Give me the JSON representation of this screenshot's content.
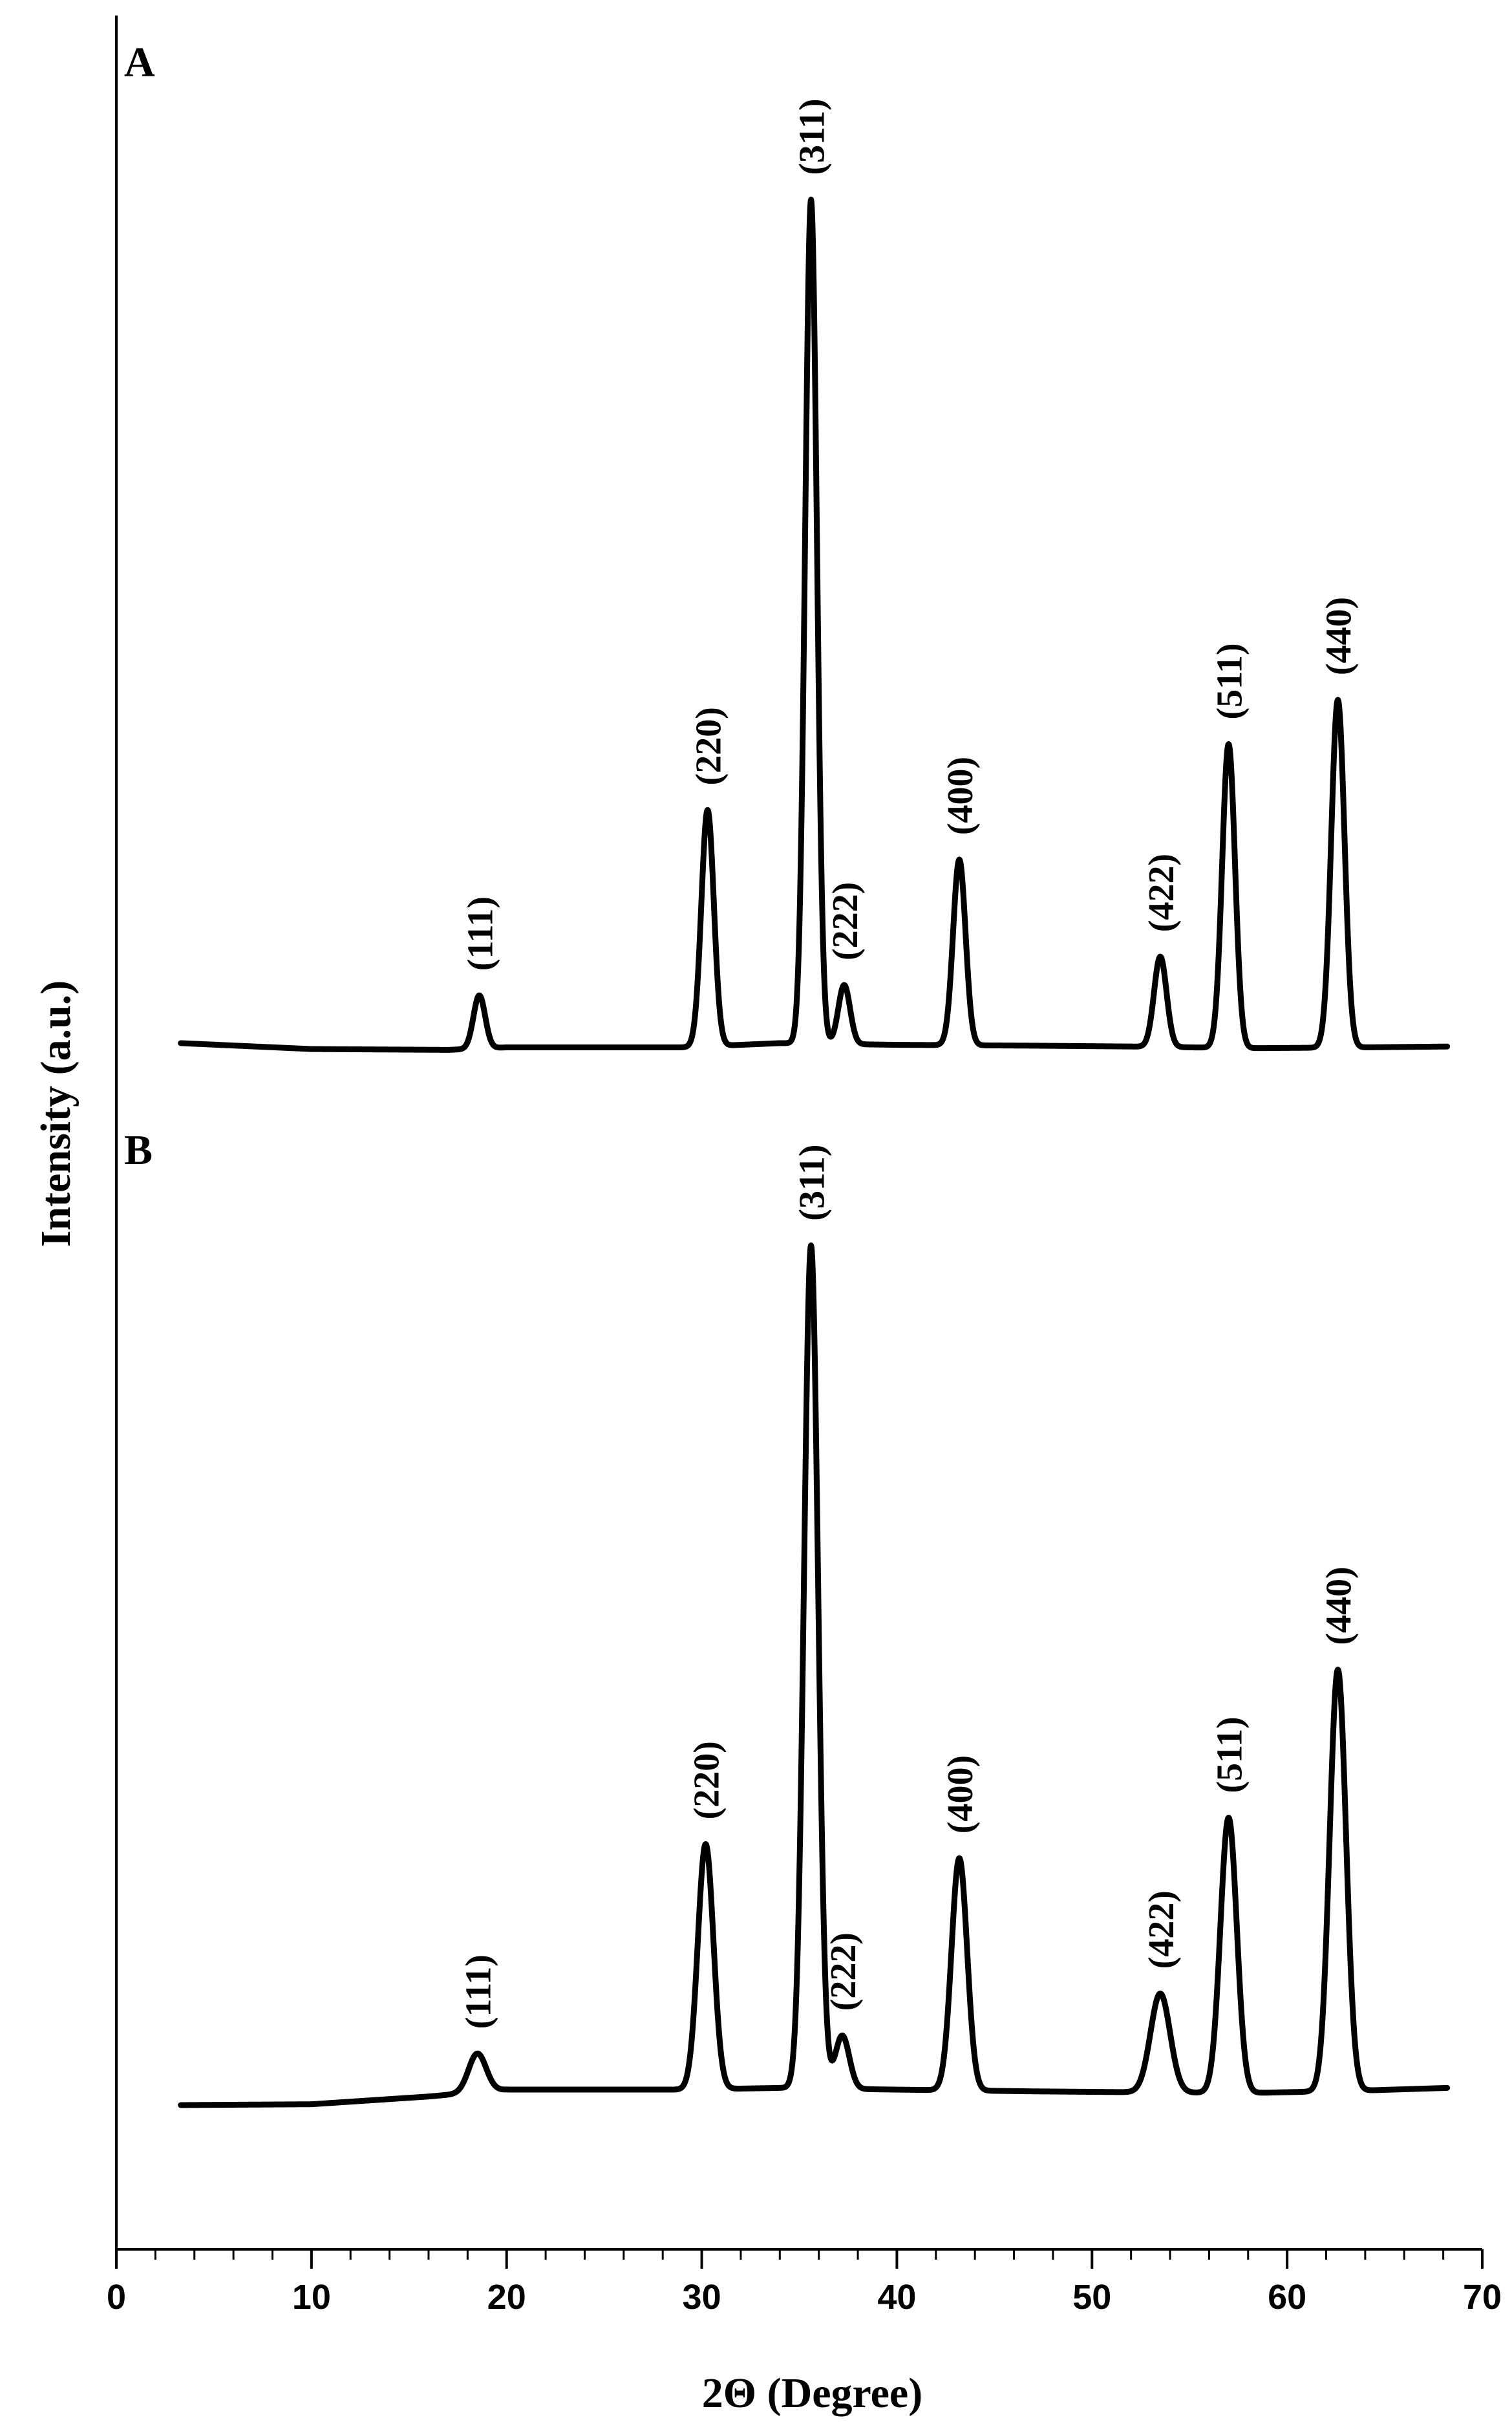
{
  "chart_data": {
    "type": "line",
    "xlabel": "2Θ (Degree)",
    "ylabel": "Intensity (a.u.)",
    "xlim": [
      0,
      70
    ],
    "x_ticks": [
      "0",
      "10",
      "20",
      "30",
      "40",
      "50",
      "60",
      "70"
    ],
    "y_ticks": [],
    "grid": false,
    "legend": "none",
    "line_color": "#000000",
    "panels": [
      {
        "label": "A",
        "baseline": [
          [
            3.3,
            1.0
          ],
          [
            10,
            0.3
          ],
          [
            17,
            0.2
          ],
          [
            20,
            0.5
          ],
          [
            29,
            0.5
          ],
          [
            34,
            1.0
          ],
          [
            40,
            0.8
          ],
          [
            47,
            0.7
          ],
          [
            52,
            0.6
          ],
          [
            58,
            0.4
          ],
          [
            64,
            0.5
          ],
          [
            68.2,
            0.6
          ]
        ],
        "peaks": [
          {
            "hkl": "(111)",
            "x": 18.6,
            "height": 6.3,
            "width": 0.3
          },
          {
            "hkl": "(220)",
            "x": 30.3,
            "height": 28.0,
            "width": 0.32
          },
          {
            "hkl": "(311)",
            "x": 35.6,
            "height": 100.0,
            "width": 0.3
          },
          {
            "hkl": "(222)",
            "x": 37.3,
            "height": 7.0,
            "width": 0.3
          },
          {
            "hkl": "(400)",
            "x": 43.2,
            "height": 22.0,
            "width": 0.32
          },
          {
            "hkl": "(422)",
            "x": 53.5,
            "height": 10.7,
            "width": 0.32
          },
          {
            "hkl": "(511)",
            "x": 57.0,
            "height": 36.0,
            "width": 0.33
          },
          {
            "hkl": "(440)",
            "x": 62.6,
            "height": 41.2,
            "width": 0.34
          }
        ]
      },
      {
        "label": "B",
        "baseline": [
          [
            3.3,
            0.0
          ],
          [
            10,
            0.1
          ],
          [
            16,
            1.0
          ],
          [
            20,
            1.8
          ],
          [
            29,
            1.8
          ],
          [
            34,
            2.0
          ],
          [
            40,
            1.8
          ],
          [
            47,
            1.6
          ],
          [
            52,
            1.5
          ],
          [
            58,
            1.4
          ],
          [
            64,
            1.7
          ],
          [
            68.2,
            2.0
          ]
        ],
        "peaks": [
          {
            "hkl": "(111)",
            "x": 18.5,
            "height": 4.5,
            "width": 0.45
          },
          {
            "hkl": "(220)",
            "x": 30.2,
            "height": 28.5,
            "width": 0.4
          },
          {
            "hkl": "(311)",
            "x": 35.6,
            "height": 98.0,
            "width": 0.36
          },
          {
            "hkl": "(222)",
            "x": 37.2,
            "height": 6.2,
            "width": 0.36
          },
          {
            "hkl": "(400)",
            "x": 43.2,
            "height": 27.0,
            "width": 0.4
          },
          {
            "hkl": "(422)",
            "x": 53.5,
            "height": 11.5,
            "width": 0.5
          },
          {
            "hkl": "(511)",
            "x": 57.0,
            "height": 32.0,
            "width": 0.42
          },
          {
            "hkl": "(440)",
            "x": 62.6,
            "height": 49.0,
            "width": 0.42
          }
        ]
      }
    ]
  }
}
